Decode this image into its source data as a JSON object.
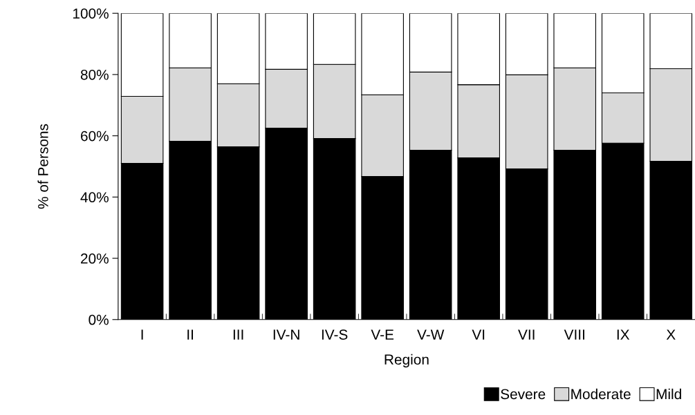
{
  "chart_data": {
    "type": "bar",
    "stacked": true,
    "xlabel": "Region",
    "ylabel": "% of Persons",
    "categories": [
      "I",
      "II",
      "III",
      "IV-N",
      "IV-S",
      "V-E",
      "V-W",
      "VI",
      "VII",
      "VIII",
      "IX",
      "X"
    ],
    "series": [
      {
        "name": "Severe",
        "color": "#000000",
        "values": [
          51.0,
          58.2,
          56.4,
          62.5,
          59.1,
          46.7,
          55.3,
          52.8,
          49.2,
          55.3,
          57.6,
          51.7
        ]
      },
      {
        "name": "Moderate",
        "color": "#d9d9d9",
        "values": [
          21.9,
          24.0,
          20.6,
          19.2,
          24.2,
          26.7,
          25.5,
          23.9,
          30.7,
          26.9,
          16.4,
          30.2
        ]
      },
      {
        "name": "Mild",
        "color": "#ffffff",
        "values": [
          27.1,
          17.8,
          23.0,
          18.3,
          16.7,
          26.6,
          19.2,
          23.3,
          20.1,
          17.8,
          26.0,
          18.1
        ]
      }
    ],
    "ylim": [
      0,
      100
    ],
    "yticks": [
      {
        "value": 0,
        "label": "0%"
      },
      {
        "value": 20,
        "label": "20%"
      },
      {
        "value": 40,
        "label": "40%"
      },
      {
        "value": 60,
        "label": "60%"
      },
      {
        "value": 80,
        "label": "80%"
      },
      {
        "value": 100,
        "label": "100%"
      }
    ],
    "grid": false,
    "legend": "bottom right"
  }
}
